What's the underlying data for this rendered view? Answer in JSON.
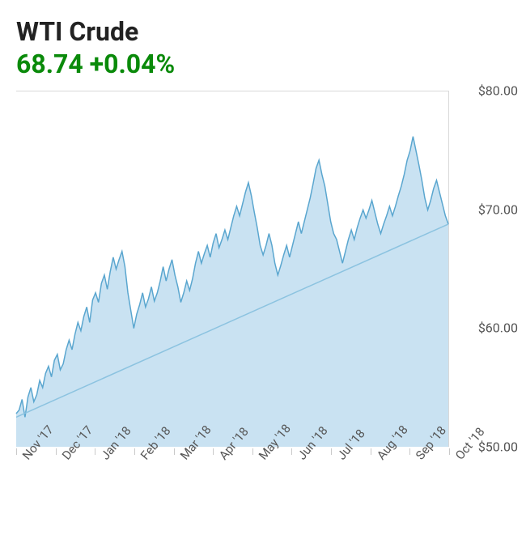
{
  "header": {
    "title": "WTI Crude",
    "title_color": "#222222",
    "title_fontsize": 32,
    "price": "68.74",
    "change": "+0.04%",
    "price_color": "#0a8a0a",
    "price_fontsize": 32
  },
  "chart": {
    "type": "area",
    "ylim": [
      50,
      80
    ],
    "ytick_step": 10,
    "y_ticks": [
      80,
      70,
      60,
      50
    ],
    "y_tick_labels": [
      "$80.00",
      "$70.00",
      "$60.00",
      "$50.00"
    ],
    "x_labels": [
      "Nov '17",
      "Dec '17",
      "Jan '18",
      "Feb '18",
      "Mar '18",
      "Apr '18",
      "May '18",
      "Jun '18",
      "Jul '18",
      "Aug '18",
      "Sep '18",
      "Oct '18"
    ],
    "x_label_rotation_deg": -50,
    "line_color": "#5aa6cf",
    "line_width": 1.5,
    "fill_color": "#bfddf0",
    "fill_opacity": 0.85,
    "background_color": "#ffffff",
    "border_color": "#d9d9d9",
    "trendline_color": "#8cc3e0",
    "trendline_width": 1.5,
    "label_color": "#555555",
    "label_fontsize": 15,
    "ylabel_fontsize": 16,
    "series": [
      52.8,
      53.1,
      54.0,
      52.5,
      54.2,
      55.0,
      53.8,
      54.4,
      55.6,
      55.0,
      56.2,
      56.8,
      55.9,
      57.3,
      57.8,
      56.5,
      57.0,
      58.2,
      59.0,
      58.2,
      59.5,
      60.5,
      59.8,
      61.0,
      61.8,
      60.5,
      62.4,
      63.0,
      62.2,
      63.8,
      64.5,
      63.3,
      64.8,
      66.0,
      65.0,
      65.8,
      66.5,
      65.2,
      63.0,
      61.5,
      60.0,
      61.2,
      62.0,
      63.0,
      61.8,
      62.5,
      63.5,
      62.3,
      63.0,
      64.0,
      65.2,
      64.0,
      65.0,
      65.8,
      64.5,
      63.5,
      62.2,
      63.0,
      64.0,
      63.2,
      64.2,
      65.5,
      66.5,
      65.5,
      66.3,
      67.0,
      66.0,
      67.2,
      68.0,
      66.8,
      67.5,
      68.3,
      67.5,
      68.5,
      69.5,
      70.3,
      69.5,
      70.5,
      71.5,
      72.3,
      71.2,
      69.8,
      68.5,
      67.0,
      66.2,
      67.0,
      68.0,
      67.0,
      65.5,
      64.5,
      65.3,
      66.2,
      67.0,
      66.0,
      67.0,
      68.0,
      69.0,
      68.0,
      69.0,
      70.0,
      71.0,
      72.2,
      73.5,
      74.2,
      73.0,
      72.0,
      70.5,
      69.0,
      68.0,
      67.5,
      66.5,
      65.5,
      66.5,
      67.5,
      68.3,
      67.5,
      68.5,
      69.3,
      70.0,
      69.3,
      70.0,
      70.8,
      69.8,
      68.8,
      68.0,
      68.8,
      69.5,
      70.3,
      69.5,
      70.3,
      71.2,
      72.0,
      73.0,
      74.2,
      75.0,
      76.2,
      75.0,
      73.8,
      72.5,
      71.0,
      70.0,
      70.8,
      71.8,
      72.5,
      71.5,
      70.5,
      69.5,
      68.8
    ],
    "n_points": 148,
    "trendline": {
      "y_start": 52.5,
      "y_end": 68.8
    }
  }
}
